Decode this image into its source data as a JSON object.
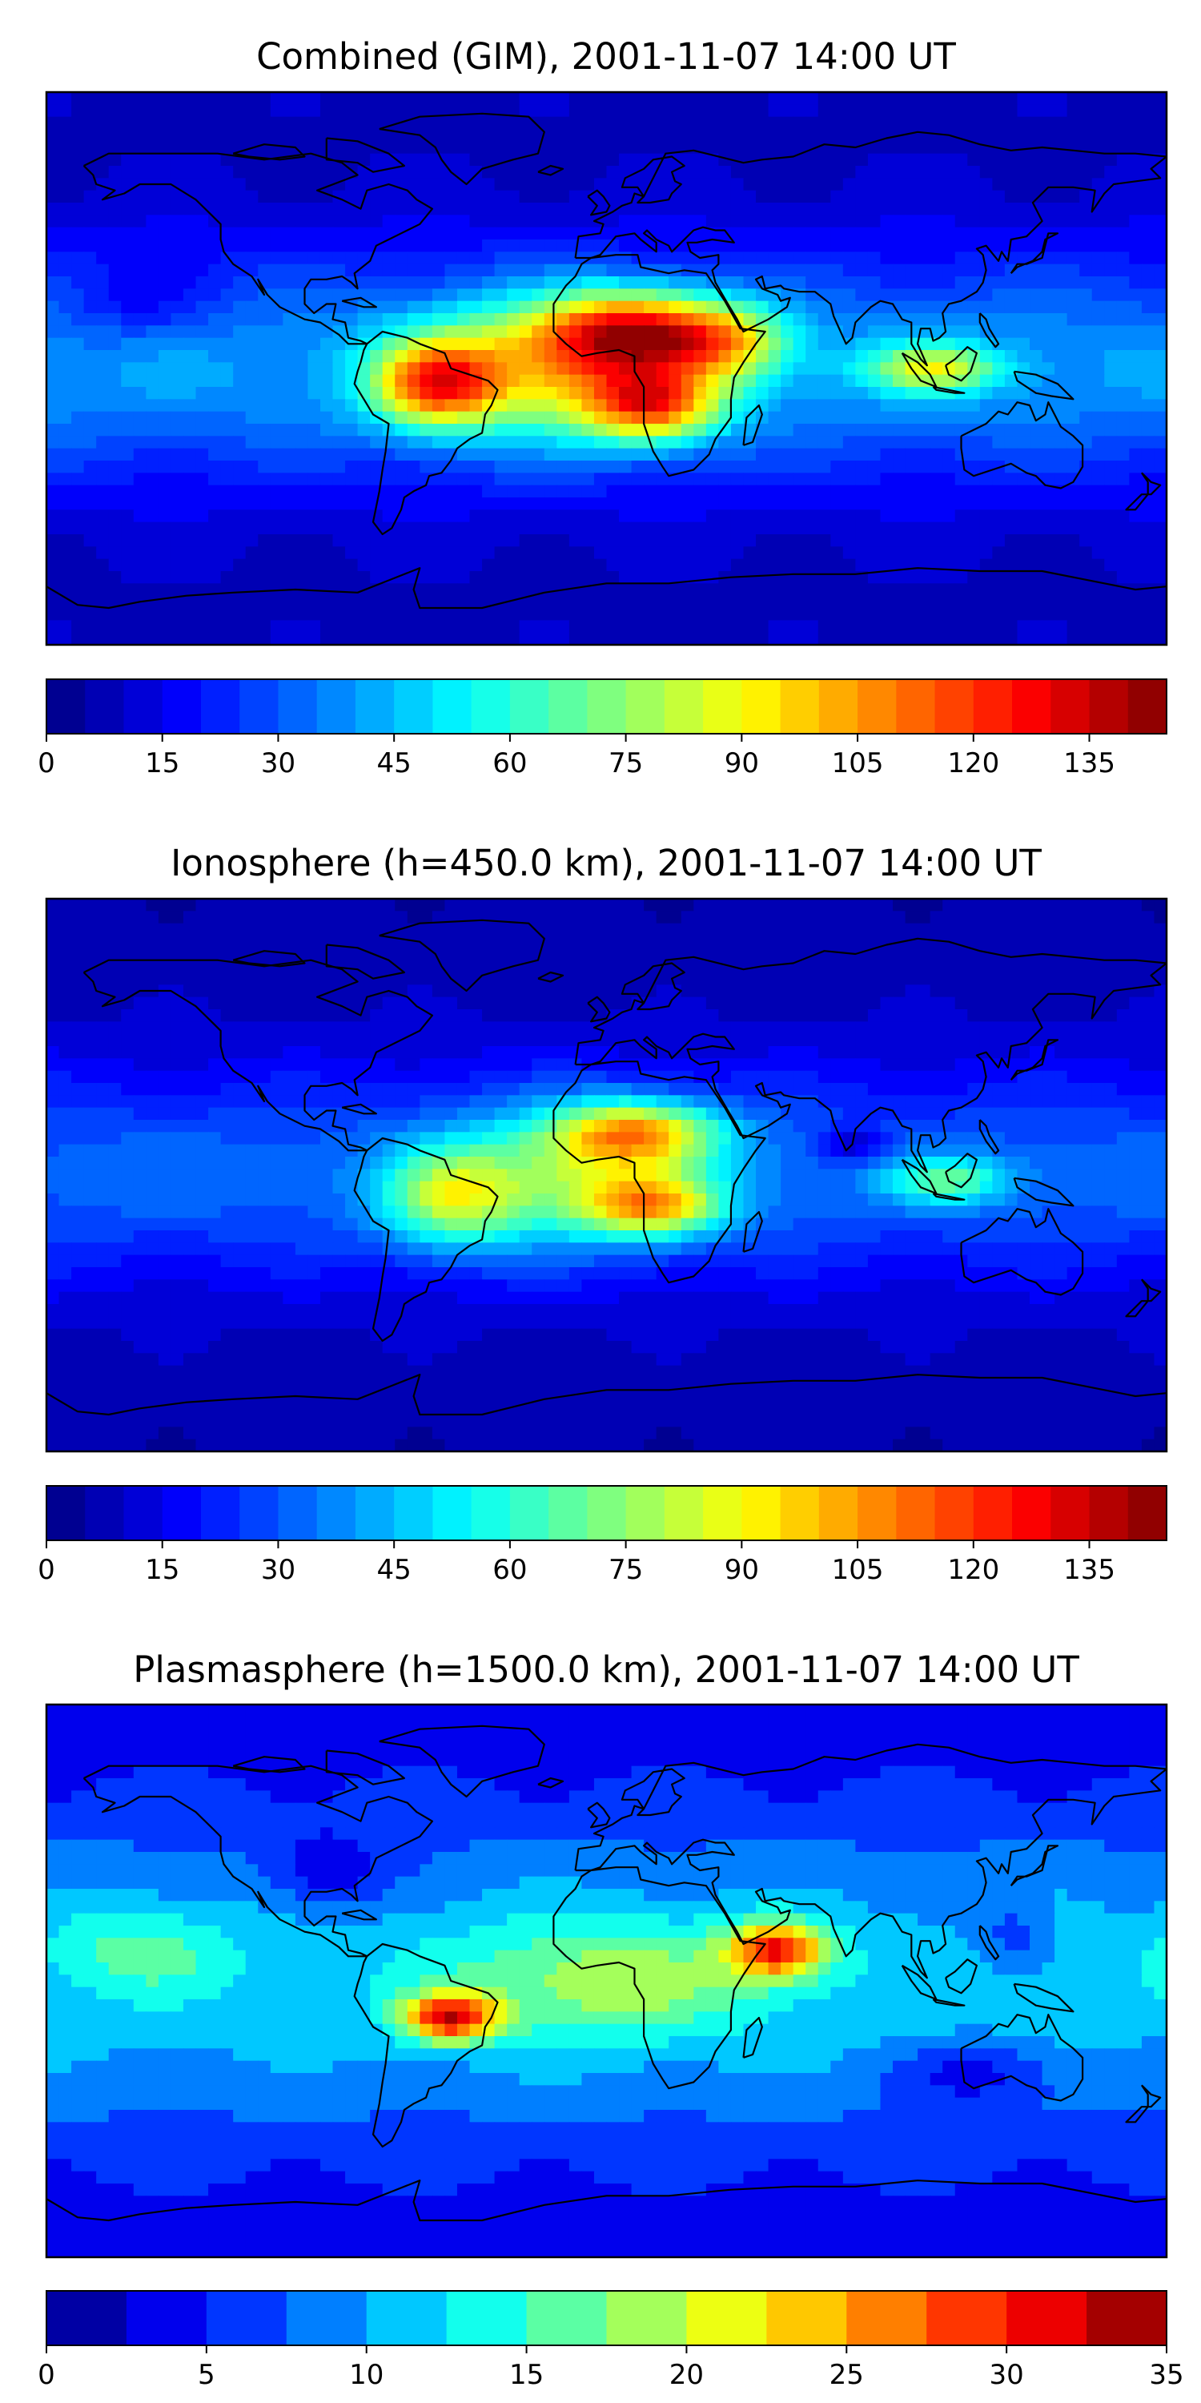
{
  "panels": [
    {
      "title": "Combined (GIM), 2001-11-07 14:00 UT",
      "colorbar": {
        "min": 0,
        "max": 145,
        "step": 5,
        "ticks": [
          0,
          15,
          30,
          45,
          60,
          75,
          90,
          105,
          120,
          135
        ],
        "tick_labels": [
          "0",
          "15",
          "30",
          "45",
          "60",
          "75",
          "90",
          "105",
          "120",
          "135"
        ]
      },
      "field": {
        "base": 32,
        "lat_decay": 38,
        "blobs": [
          {
            "lon": -55,
            "lat": -5,
            "amp": 70,
            "slon": 20,
            "slat": 14
          },
          {
            "lon": 10,
            "lat": 12,
            "amp": 82,
            "slon": 30,
            "slat": 13
          },
          {
            "lon": 15,
            "lat": -12,
            "amp": 72,
            "slon": 22,
            "slat": 12
          },
          {
            "lon": 40,
            "lat": 8,
            "amp": 40,
            "slon": 20,
            "slat": 12
          },
          {
            "lon": 105,
            "lat": 0,
            "amp": 48,
            "slon": 22,
            "slat": 8
          },
          {
            "lon": -20,
            "lat": 0,
            "amp": 50,
            "slon": 40,
            "slat": 22
          },
          {
            "lon": -150,
            "lat": 20,
            "amp": -12,
            "slon": 25,
            "slat": 12
          }
        ]
      }
    },
    {
      "title": "Ionosphere  (h=450.0 km), 2001-11-07 14:00 UT",
      "colorbar": {
        "min": 0,
        "max": 145,
        "step": 5,
        "ticks": [
          0,
          15,
          30,
          45,
          60,
          75,
          90,
          105,
          120,
          135
        ],
        "tick_labels": [
          "0",
          "15",
          "30",
          "45",
          "60",
          "75",
          "90",
          "105",
          "120",
          "135"
        ]
      },
      "field": {
        "base": 26,
        "lat_decay": 36,
        "blobs": [
          {
            "lon": -50,
            "lat": -8,
            "amp": 45,
            "slon": 22,
            "slat": 16
          },
          {
            "lon": 10,
            "lat": 14,
            "amp": 62,
            "slon": 26,
            "slat": 10
          },
          {
            "lon": 15,
            "lat": -10,
            "amp": 58,
            "slon": 22,
            "slat": 10
          },
          {
            "lon": -10,
            "lat": 0,
            "amp": 40,
            "slon": 40,
            "slat": 22
          },
          {
            "lon": 110,
            "lat": -2,
            "amp": 35,
            "slon": 20,
            "slat": 8
          },
          {
            "lon": 80,
            "lat": 10,
            "amp": -20,
            "slon": 10,
            "slat": 6
          }
        ]
      }
    },
    {
      "title": "Plasmasphere (h=1500.0 km), 2001-11-07 14:00 UT",
      "colorbar": {
        "min": 0,
        "max": 35,
        "step": 2.5,
        "ticks": [
          0,
          5,
          10,
          15,
          20,
          25,
          30,
          35
        ],
        "tick_labels": [
          "0",
          "5",
          "10",
          "15",
          "20",
          "25",
          "30",
          "35"
        ]
      },
      "field": {
        "base": 9,
        "lat_decay": 60,
        "blobs": [
          {
            "lon": -50,
            "lat": -12,
            "amp": 20,
            "slon": 15,
            "slat": 8
          },
          {
            "lon": 55,
            "lat": 10,
            "amp": 19,
            "slon": 16,
            "slat": 9
          },
          {
            "lon": 0,
            "lat": 0,
            "amp": 8,
            "slon": 50,
            "slat": 20
          },
          {
            "lon": -150,
            "lat": 10,
            "amp": 5,
            "slon": 30,
            "slat": 15
          },
          {
            "lon": -90,
            "lat": 35,
            "amp": -6,
            "slon": 18,
            "slat": 12
          },
          {
            "lon": 130,
            "lat": 15,
            "amp": -4,
            "slon": 12,
            "slat": 10
          },
          {
            "lon": 120,
            "lat": -30,
            "amp": -5,
            "slon": 25,
            "slat": 10
          }
        ]
      }
    }
  ],
  "colormap": [
    "#00007f",
    "#0000ff",
    "#007fff",
    "#00ffff",
    "#7fff7f",
    "#ffff00",
    "#ff7f00",
    "#ff0000",
    "#7f0000"
  ],
  "coast_color": "#000000"
}
